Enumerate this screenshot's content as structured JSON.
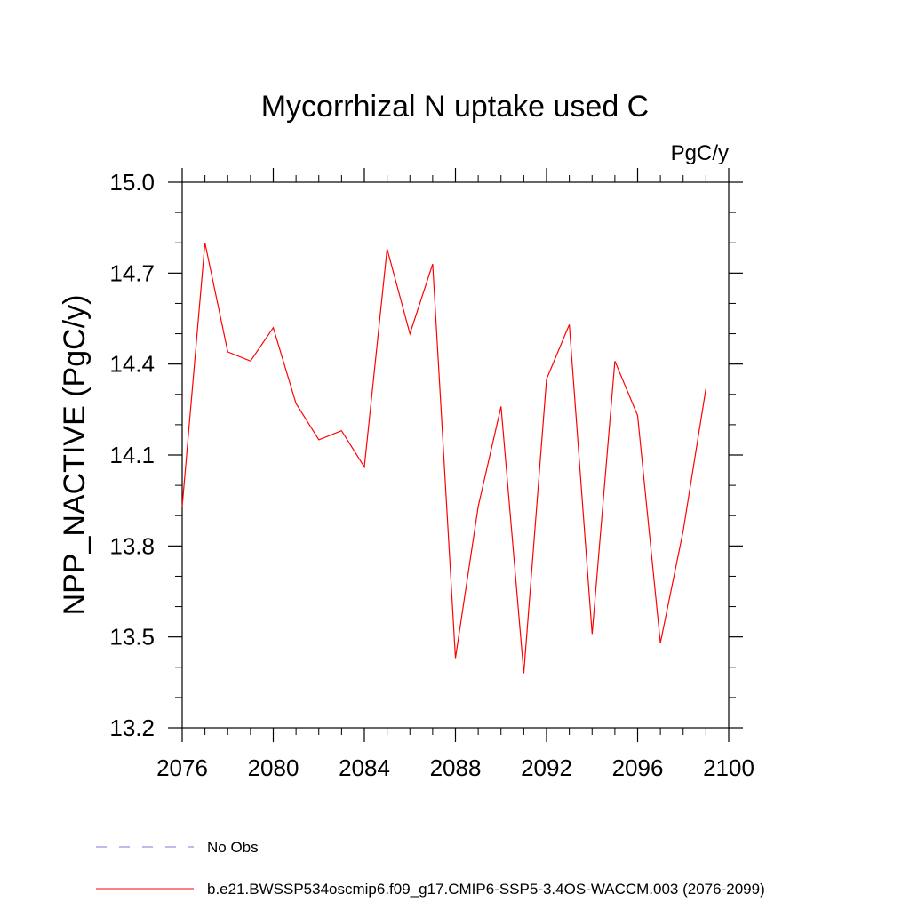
{
  "chart_data": {
    "type": "line",
    "title": "Mycorrhizal N uptake used C",
    "units_label": "PgC/y",
    "xlabel": "",
    "ylabel": "NPP_NACTIVE  (PgC/y)",
    "xlim": [
      2076,
      2100
    ],
    "ylim": [
      13.2,
      15.0
    ],
    "x_ticks": [
      2076,
      2080,
      2084,
      2088,
      2092,
      2096,
      2100
    ],
    "y_ticks": [
      13.2,
      13.5,
      13.8,
      14.1,
      14.4,
      14.7,
      15.0
    ],
    "y_tick_labels": [
      "13.2",
      "13.5",
      "13.8",
      "14.1",
      "14.4",
      "14.7",
      "15.0"
    ],
    "grid": false,
    "legend_position": "bottom-left",
    "legend": [
      {
        "label": "No Obs",
        "color": "#7b7bd6",
        "style": "dashed"
      },
      {
        "label": "b.e21.BWSSP534oscmip6.f09_g17.CMIP6-SSP5-3.4OS-WACCM.003 (2076-2099)",
        "color": "#ff0000",
        "style": "solid"
      }
    ],
    "series": [
      {
        "name": "b.e21.BWSSP534oscmip6.f09_g17.CMIP6-SSP5-3.4OS-WACCM.003 (2076-2099)",
        "color": "#ff0000",
        "x": [
          2076,
          2077,
          2078,
          2079,
          2080,
          2081,
          2082,
          2083,
          2084,
          2085,
          2086,
          2087,
          2088,
          2089,
          2090,
          2091,
          2092,
          2093,
          2094,
          2095,
          2096,
          2097,
          2098,
          2099
        ],
        "y": [
          13.93,
          14.8,
          14.44,
          14.41,
          14.52,
          14.27,
          14.15,
          14.18,
          14.06,
          14.78,
          14.5,
          14.73,
          13.43,
          13.93,
          14.26,
          13.38,
          14.35,
          14.53,
          13.51,
          14.41,
          14.23,
          13.48,
          13.85,
          14.32
        ]
      }
    ]
  }
}
